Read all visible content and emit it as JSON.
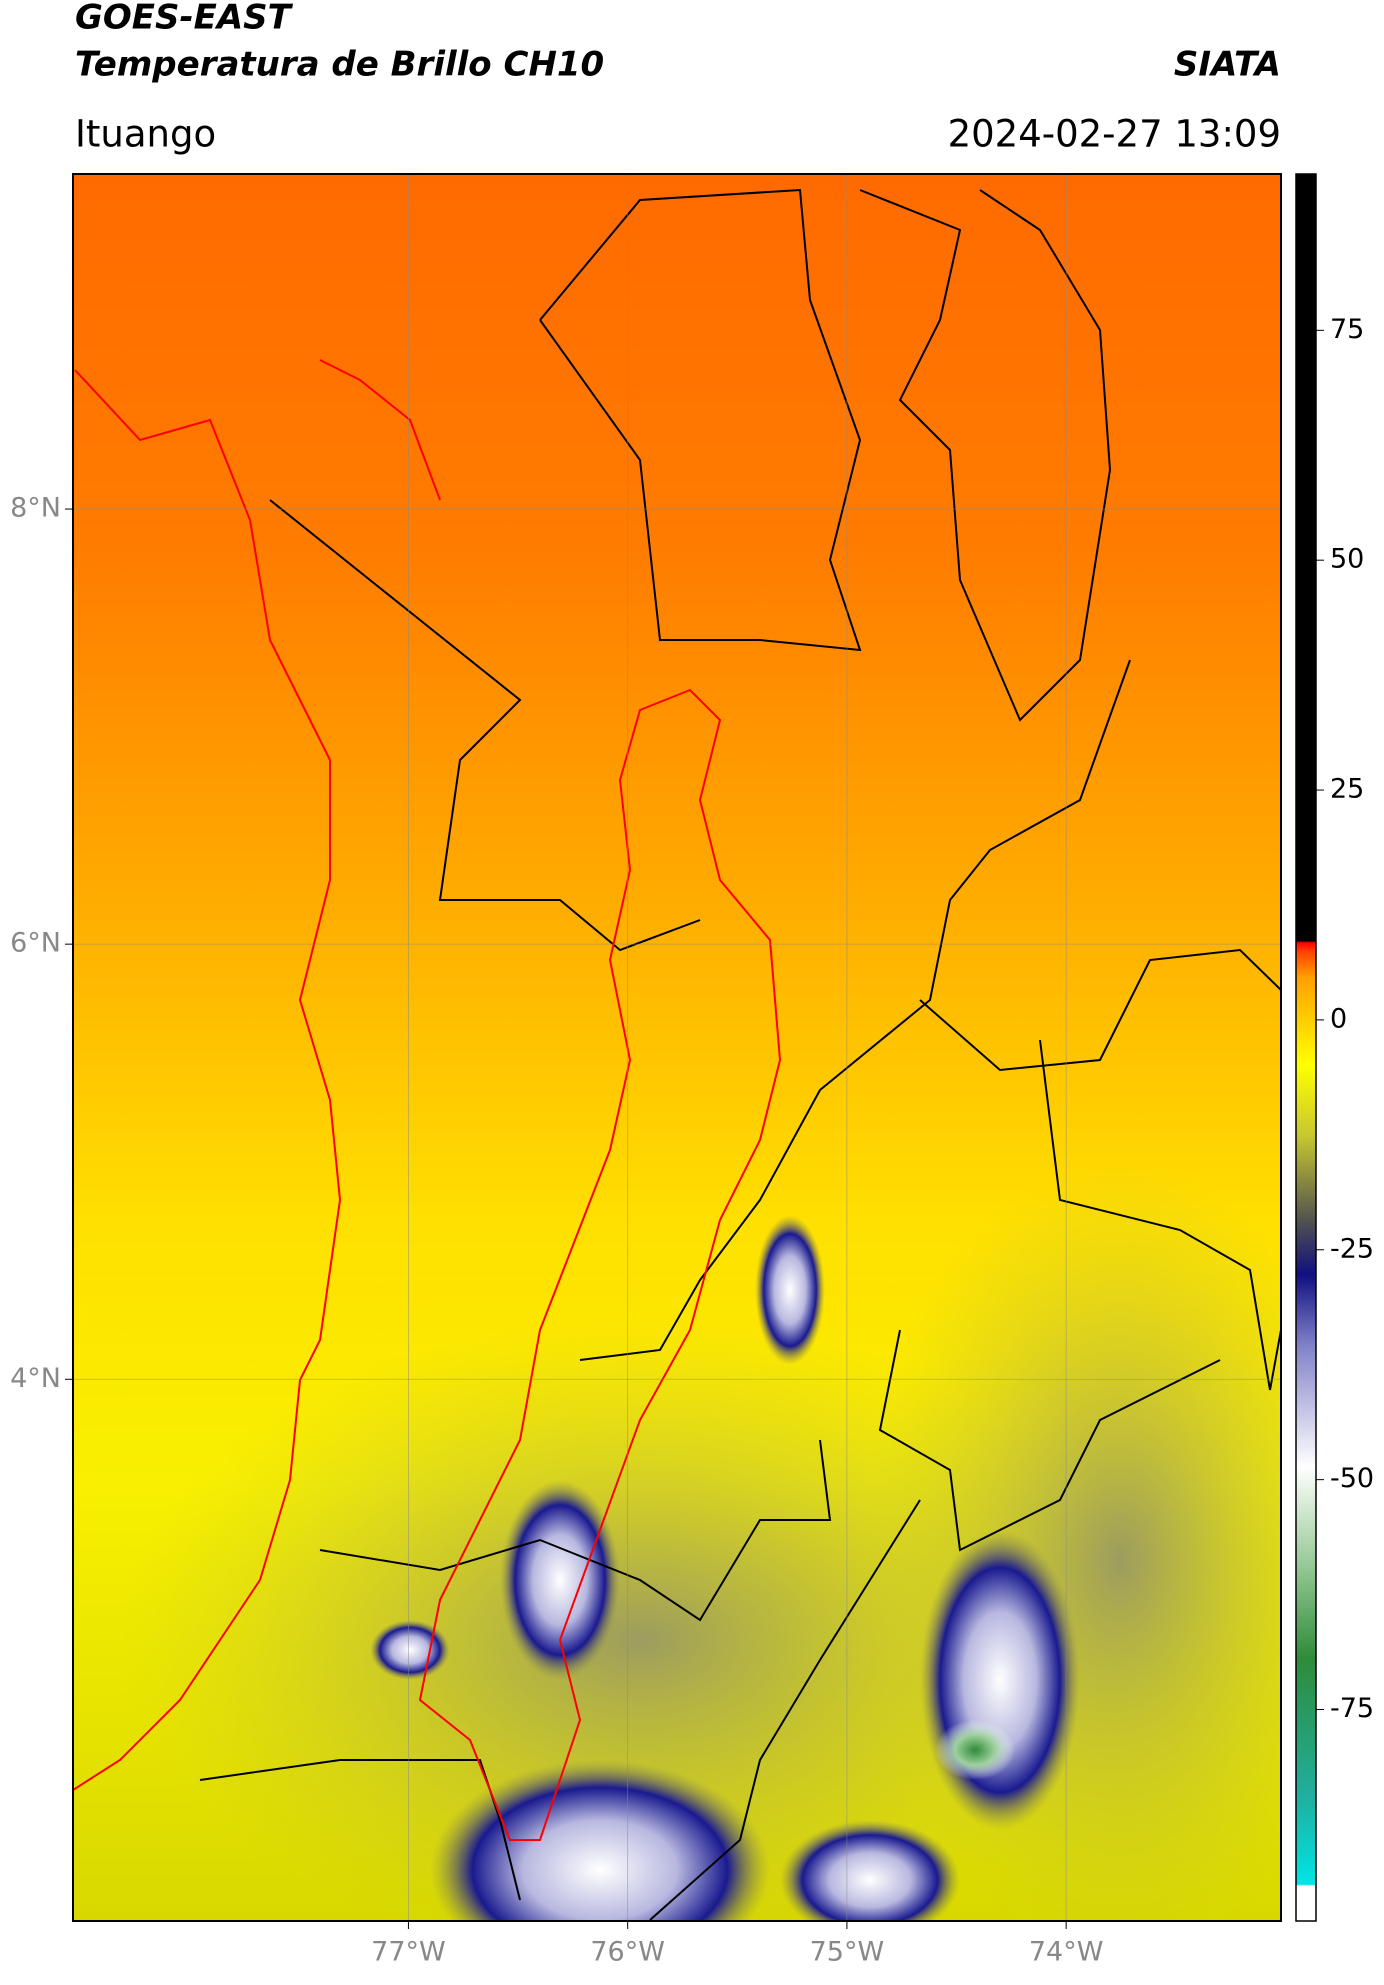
{
  "header": {
    "satellite": "GOES-EAST",
    "product": "Temperatura de Brillo CH10",
    "agency": "SIATA",
    "region": "Ituango",
    "datetime": "2024-02-27 13:09"
  },
  "map": {
    "lonlim": [
      -78.53,
      -73.02
    ],
    "latlim": [
      1.51,
      9.54
    ],
    "lon_ticks": [
      {
        "value": -77,
        "label": "77°W"
      },
      {
        "value": -76,
        "label": "76°W"
      },
      {
        "value": -75,
        "label": "75°W"
      },
      {
        "value": -74,
        "label": "74°W"
      }
    ],
    "lat_ticks": [
      {
        "value": 8,
        "label": "8°N"
      },
      {
        "value": 6,
        "label": "6°N"
      },
      {
        "value": 4,
        "label": "4°N"
      }
    ]
  },
  "colorbar": {
    "lim": [
      -98,
      92
    ],
    "ticks": [
      75,
      50,
      25,
      0,
      -25,
      -50,
      -75
    ]
  }
}
